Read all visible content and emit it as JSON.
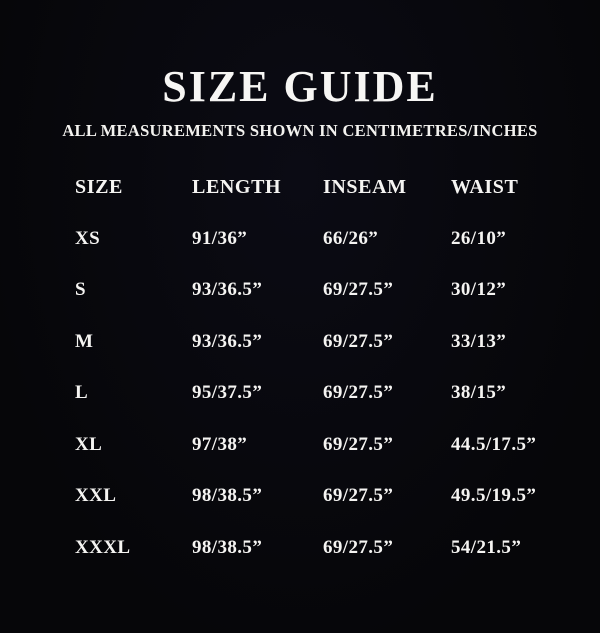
{
  "title": "SIZE GUIDE",
  "subtitle": "ALL MEASUREMENTS SHOWN IN CENTIMETRES/INCHES",
  "table": {
    "columns": [
      "SIZE",
      "LENGTH",
      "INSEAM",
      "WAIST"
    ],
    "rows": [
      [
        "XS",
        "91/36”",
        "66/26”",
        "26/10”"
      ],
      [
        "S",
        "93/36.5”",
        "69/27.5”",
        "30/12”"
      ],
      [
        "M",
        "93/36.5”",
        "69/27.5”",
        "33/13”"
      ],
      [
        "L",
        "95/37.5”",
        "69/27.5”",
        "38/15”"
      ],
      [
        "XL",
        "97/38”",
        "69/27.5”",
        "44.5/17.5”"
      ],
      [
        "XXL",
        "98/38.5”",
        "69/27.5”",
        "49.5/19.5”"
      ],
      [
        "XXXL",
        "98/38.5”",
        "69/27.5”",
        "54/21.5”"
      ]
    ]
  },
  "colors": {
    "background": "#07070f",
    "text": "#f5f4f2"
  }
}
